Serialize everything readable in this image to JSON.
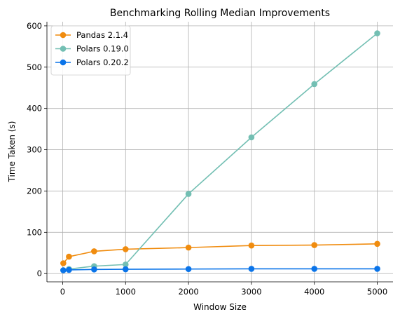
{
  "chart_data": {
    "type": "line",
    "title": "Benchmarking Rolling Median Improvements",
    "xlabel": "Window Size",
    "ylabel": "Time Taken (s)",
    "x": [
      10,
      100,
      500,
      1000,
      2000,
      3000,
      4000,
      5000
    ],
    "xlim": [
      -250,
      5250
    ],
    "ylim": [
      -20,
      610
    ],
    "xticks": [
      0,
      1000,
      2000,
      3000,
      4000,
      5000
    ],
    "yticks": [
      0,
      100,
      200,
      300,
      400,
      500,
      600
    ],
    "grid": true,
    "legend_position": "top-left",
    "series": [
      {
        "name": "Pandas 2.1.4",
        "color": "#f08c0f",
        "values": [
          25,
          41,
          54,
          59,
          63,
          68,
          69,
          72
        ]
      },
      {
        "name": "Polars 0.19.0",
        "color": "#73bfb3",
        "values": [
          8,
          11,
          18,
          22,
          193,
          330,
          459,
          582
        ]
      },
      {
        "name": "Polars 0.20.2",
        "color": "#0a74e9",
        "values": [
          8,
          9,
          10,
          10.5,
          11,
          11.5,
          11.5,
          11.5
        ]
      }
    ]
  }
}
